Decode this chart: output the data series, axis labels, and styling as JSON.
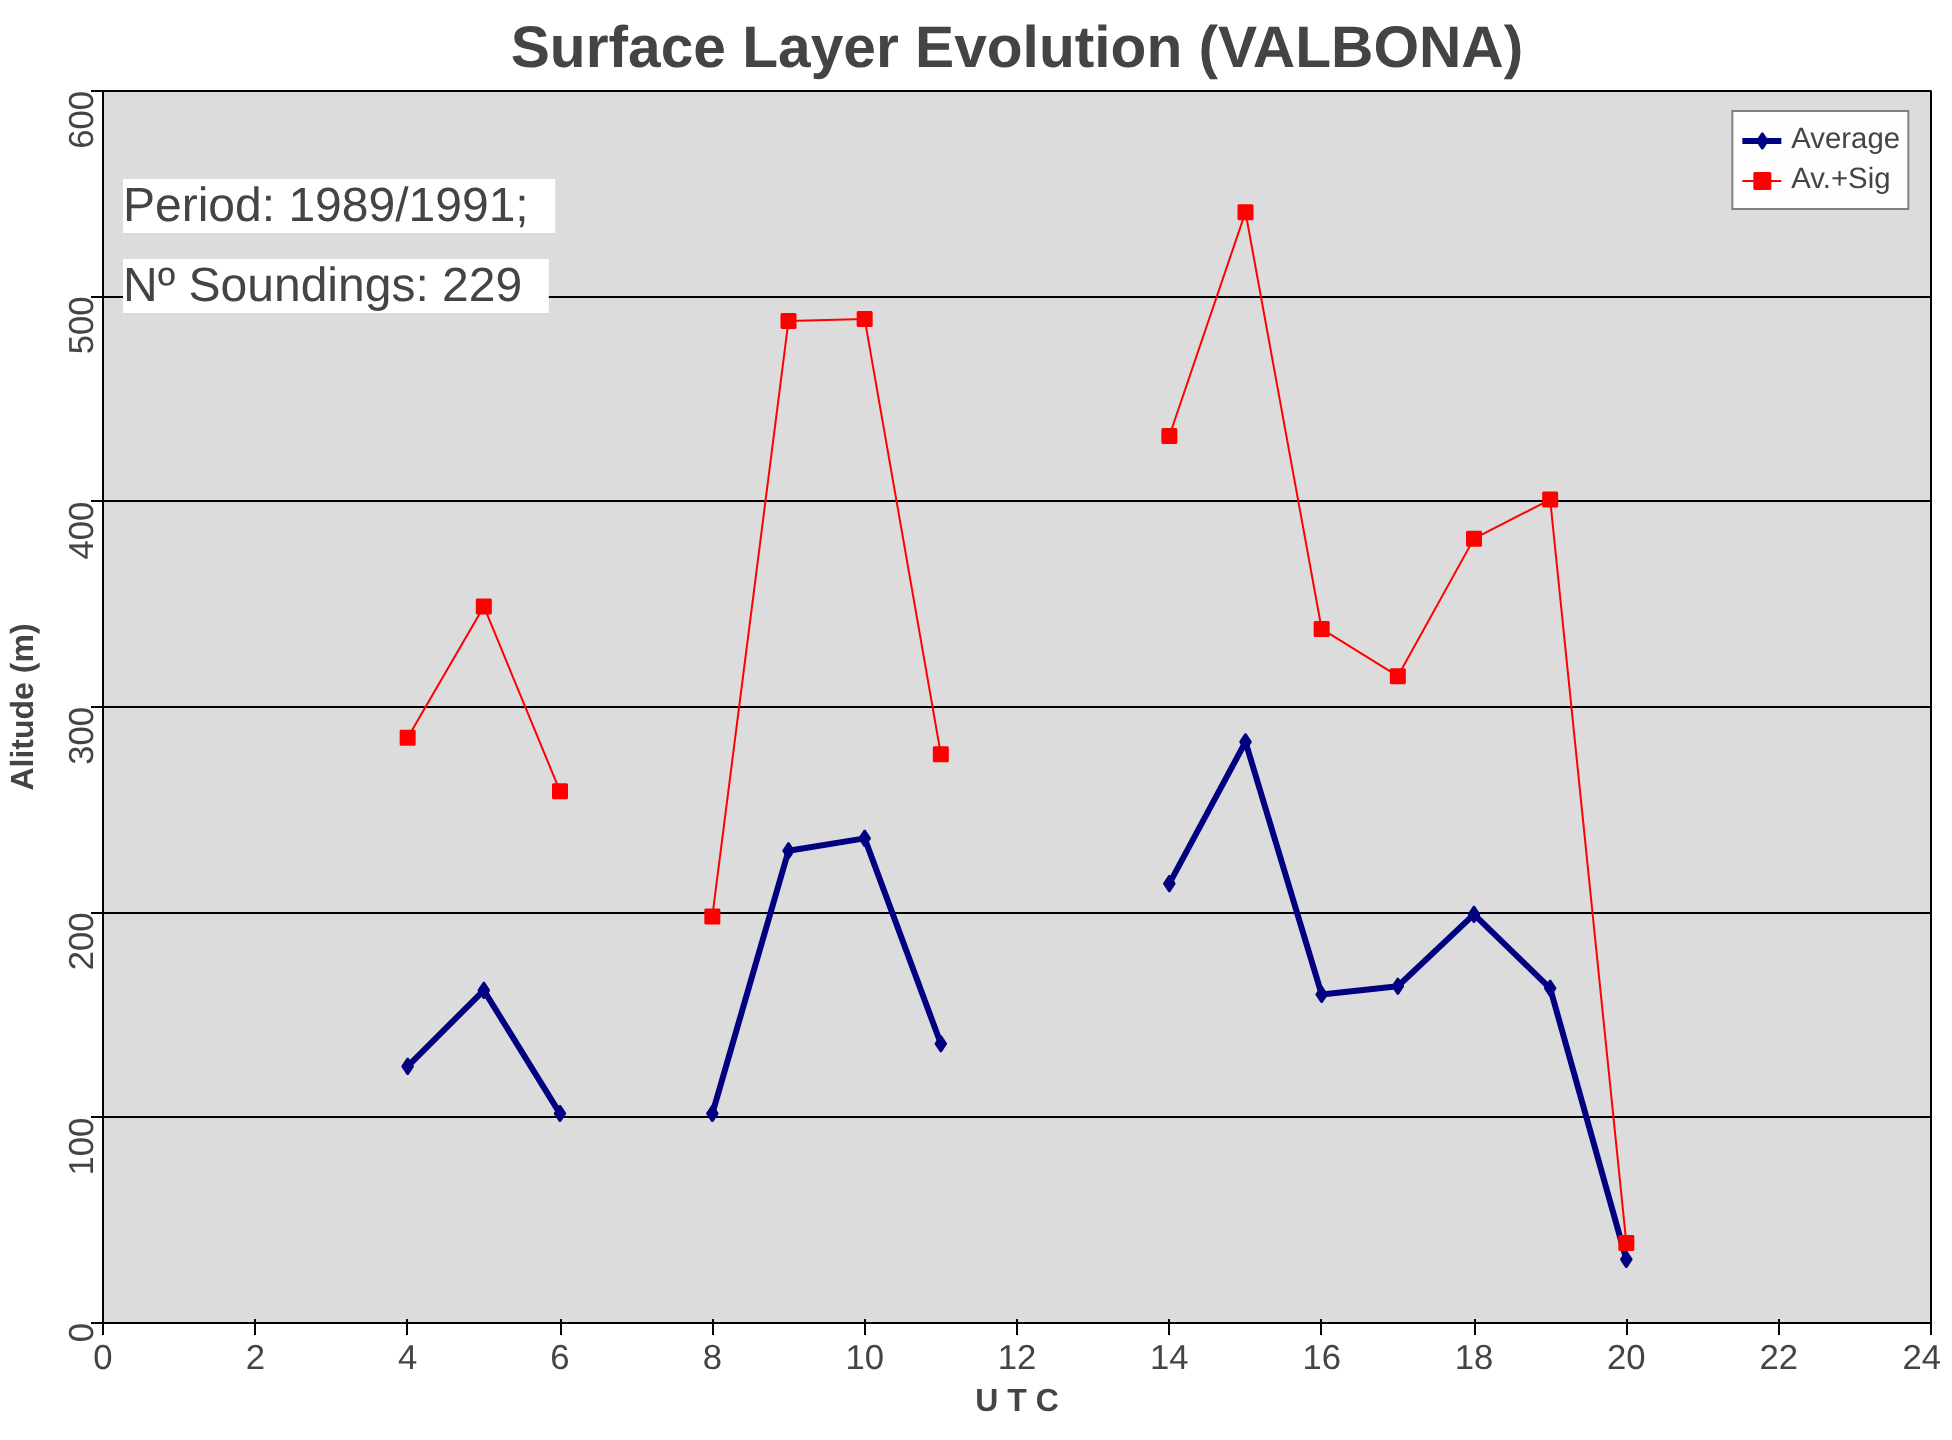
{
  "chart_data": {
    "type": "line",
    "title": "Surface Layer Evolution (VALBONA)",
    "xlabel": "U T C",
    "ylabel": "Alitude (m)",
    "x": [
      4,
      5,
      6,
      7,
      8,
      9,
      10,
      11,
      12,
      13,
      14,
      15,
      16,
      17,
      18,
      19,
      20
    ],
    "series": [
      {
        "name": "Average",
        "color": "#000080",
        "marker": "diamond",
        "values": [
          125,
          162,
          102,
          null,
          102,
          230,
          236,
          136,
          null,
          null,
          214,
          283,
          160,
          164,
          199,
          163,
          31
        ]
      },
      {
        "name": "Av.+Sig",
        "color": "#ff0000",
        "marker": "square",
        "values": [
          285,
          349,
          259,
          null,
          198,
          488,
          489,
          277,
          null,
          null,
          432,
          541,
          338,
          315,
          382,
          401,
          39
        ]
      }
    ],
    "xlim": [
      0,
      24
    ],
    "xticks": [
      0,
      2,
      4,
      6,
      8,
      10,
      12,
      14,
      16,
      18,
      20,
      22,
      24
    ],
    "ylim": [
      0,
      600
    ],
    "yticks": [
      0,
      100,
      200,
      300,
      400,
      500,
      600
    ],
    "grid": "y",
    "legend": "top right",
    "annotations": [
      "Period:   1989/1991;",
      "Nº Soundings:   229"
    ]
  }
}
